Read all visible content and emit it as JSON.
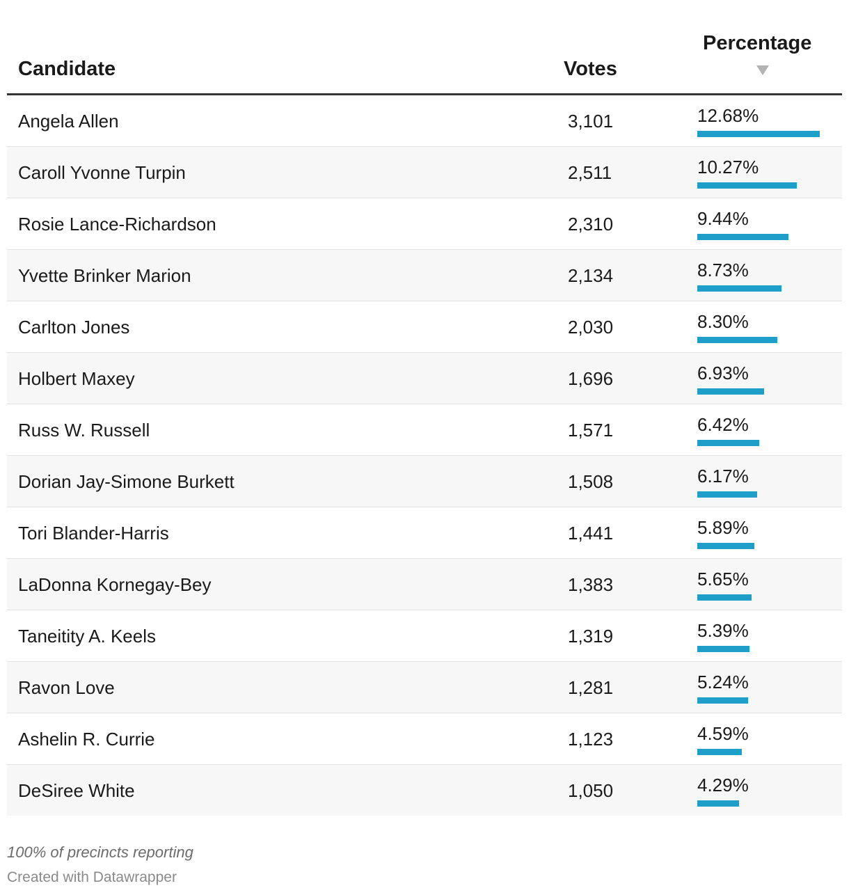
{
  "table": {
    "headers": {
      "candidate": "Candidate",
      "votes": "Votes",
      "percentage": "Percentage"
    },
    "sort_indicator": "sort-descending-icon"
  },
  "chart_data": {
    "type": "table",
    "columns": [
      "Candidate",
      "Votes",
      "Percentage"
    ],
    "sorted_by": "Percentage",
    "sort_order": "descending",
    "bar_color": "#1d9fc9",
    "bar_max_percent": 12.68,
    "rows": [
      {
        "candidate": "Angela Allen",
        "votes": "3,101",
        "percentage": "12.68%",
        "pct_value": 12.68
      },
      {
        "candidate": "Caroll Yvonne Turpin",
        "votes": "2,511",
        "percentage": "10.27%",
        "pct_value": 10.27
      },
      {
        "candidate": "Rosie Lance-Richardson",
        "votes": "2,310",
        "percentage": "9.44%",
        "pct_value": 9.44
      },
      {
        "candidate": "Yvette Brinker Marion",
        "votes": "2,134",
        "percentage": "8.73%",
        "pct_value": 8.73
      },
      {
        "candidate": "Carlton Jones",
        "votes": "2,030",
        "percentage": "8.30%",
        "pct_value": 8.3
      },
      {
        "candidate": "Holbert Maxey",
        "votes": "1,696",
        "percentage": "6.93%",
        "pct_value": 6.93
      },
      {
        "candidate": "Russ W. Russell",
        "votes": "1,571",
        "percentage": "6.42%",
        "pct_value": 6.42
      },
      {
        "candidate": "Dorian Jay-Simone Burkett",
        "votes": "1,508",
        "percentage": "6.17%",
        "pct_value": 6.17
      },
      {
        "candidate": "Tori Blander-Harris",
        "votes": "1,441",
        "percentage": "5.89%",
        "pct_value": 5.89
      },
      {
        "candidate": "LaDonna Kornegay-Bey",
        "votes": "1,383",
        "percentage": "5.65%",
        "pct_value": 5.65
      },
      {
        "candidate": "Taneitity A. Keels",
        "votes": "1,319",
        "percentage": "5.39%",
        "pct_value": 5.39
      },
      {
        "candidate": "Ravon Love",
        "votes": "1,281",
        "percentage": "5.24%",
        "pct_value": 5.24
      },
      {
        "candidate": "Ashelin R. Currie",
        "votes": "1,123",
        "percentage": "4.59%",
        "pct_value": 4.59
      },
      {
        "candidate": "DeSiree White",
        "votes": "1,050",
        "percentage": "4.29%",
        "pct_value": 4.29
      }
    ]
  },
  "footer": {
    "note": "100% of precincts reporting",
    "credit": "Created with Datawrapper"
  }
}
